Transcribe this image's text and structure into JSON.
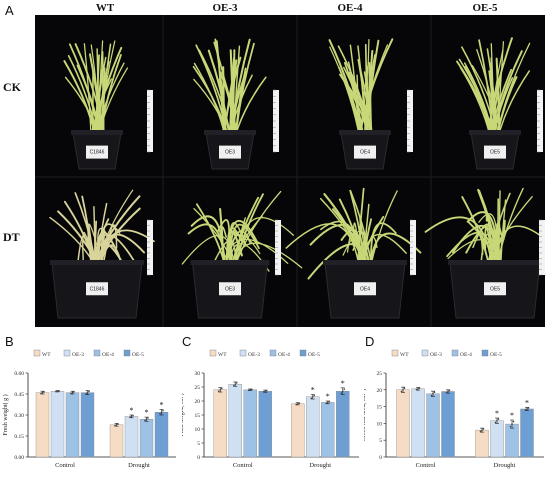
{
  "panel_labels": {
    "a": "A",
    "b": "B",
    "c": "C",
    "d": "D"
  },
  "photo": {
    "columns": [
      "WT",
      "OE-3",
      "OE-4",
      "OE-5"
    ],
    "rows": [
      "CK",
      "DT"
    ],
    "pot_labels": {
      "ck": [
        "C1846",
        "OE3",
        "OE4",
        "OE5"
      ],
      "dt": [
        "C1846",
        "OE3",
        "OE4",
        "OE5"
      ]
    },
    "colors": {
      "background": "#060608",
      "leaf": "#c8d878",
      "leaf_dry": "#d8d49a",
      "pot": "#15151a",
      "label": "#f0f0f0"
    }
  },
  "legend": [
    "WT",
    "OE-3",
    "OE-4",
    "OE-5"
  ],
  "series_colors": [
    "#f6dcc4",
    "#cfe0f2",
    "#9ec1e6",
    "#6e9fd4"
  ],
  "chart_data": [
    {
      "type": "bar",
      "panel": "B",
      "ylabel": "Fresh weight( g )",
      "categories": [
        "Control",
        "Drought"
      ],
      "ylim": [
        0.0,
        0.6
      ],
      "ytick_labels": [
        "0.00",
        "0.15",
        "0.30",
        "0.45",
        "0.60"
      ],
      "ytick_values": [
        0,
        0.15,
        0.3,
        0.45,
        0.6
      ],
      "series": [
        {
          "name": "WT",
          "values": [
            0.46,
            0.23
          ],
          "errors": [
            0.01,
            0.01
          ],
          "stars": [
            "",
            ""
          ]
        },
        {
          "name": "OE-3",
          "values": [
            0.47,
            0.29
          ],
          "errors": [
            0.005,
            0.01
          ],
          "stars": [
            "",
            "*"
          ]
        },
        {
          "name": "OE-4",
          "values": [
            0.46,
            0.27
          ],
          "errors": [
            0.01,
            0.015
          ],
          "stars": [
            "",
            "*"
          ]
        },
        {
          "name": "OE-5",
          "values": [
            0.46,
            0.32
          ],
          "errors": [
            0.015,
            0.02
          ],
          "stars": [
            "",
            "*"
          ]
        }
      ]
    },
    {
      "type": "bar",
      "panel": "C",
      "ylabel": "Plant height( cm )",
      "categories": [
        "Control",
        "Drought"
      ],
      "ylim": [
        0,
        30
      ],
      "ytick_labels": [
        "0",
        "5",
        "10",
        "15",
        "20",
        "25",
        "30"
      ],
      "ytick_values": [
        0,
        5,
        10,
        15,
        20,
        25,
        30
      ],
      "series": [
        {
          "name": "WT",
          "values": [
            24,
            19
          ],
          "errors": [
            0.8,
            0.4
          ],
          "stars": [
            "",
            ""
          ]
        },
        {
          "name": "OE-3",
          "values": [
            26,
            21.5
          ],
          "errors": [
            0.8,
            0.8
          ],
          "stars": [
            "",
            "*"
          ]
        },
        {
          "name": "OE-4",
          "values": [
            24,
            19.5
          ],
          "errors": [
            0.3,
            0.5
          ],
          "stars": [
            "",
            "*"
          ]
        },
        {
          "name": "OE-5",
          "values": [
            23.5,
            23.5
          ],
          "errors": [
            0.4,
            1.2
          ],
          "stars": [
            "",
            "*"
          ]
        }
      ]
    },
    {
      "type": "bar",
      "panel": "D",
      "ylabel": "Green leaf area( cm² )",
      "categories": [
        "Control",
        "Drought"
      ],
      "ylim": [
        0,
        25
      ],
      "ytick_labels": [
        "0",
        "5",
        "10",
        "15",
        "20",
        "25"
      ],
      "ytick_values": [
        0,
        5,
        10,
        15,
        20,
        25
      ],
      "series": [
        {
          "name": "WT",
          "values": [
            20,
            8
          ],
          "errors": [
            0.8,
            0.6
          ],
          "stars": [
            "",
            ""
          ]
        },
        {
          "name": "OE-3",
          "values": [
            20.3,
            10.8
          ],
          "errors": [
            0.4,
            0.8
          ],
          "stars": [
            "",
            "*"
          ]
        },
        {
          "name": "OE-4",
          "values": [
            18.8,
            9.8
          ],
          "errors": [
            0.8,
            1.2
          ],
          "stars": [
            "",
            "*"
          ]
        },
        {
          "name": "OE-5",
          "values": [
            19.5,
            14.3
          ],
          "errors": [
            0.5,
            0.5
          ],
          "stars": [
            "",
            "*"
          ]
        }
      ]
    }
  ]
}
